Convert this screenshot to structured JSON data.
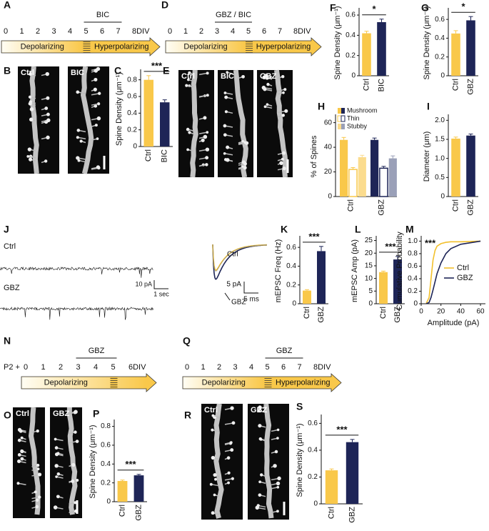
{
  "timelines": [
    {
      "panel": "A",
      "ticks": [
        "0",
        "1",
        "2",
        "3",
        "4",
        "5",
        "6",
        "7",
        "8DIV"
      ],
      "drug": "BIC",
      "phases": [
        "Depolarizing",
        "Hyperpolarizing"
      ]
    },
    {
      "panel": "D",
      "ticks": [
        "0",
        "1",
        "2",
        "3",
        "4",
        "5",
        "6",
        "7",
        "8DIV"
      ],
      "drug": "GBZ / BIC",
      "phases": [
        "Depolarizing",
        "Hyperpolarizing"
      ]
    },
    {
      "panel": "N",
      "prefix": "P2 +",
      "ticks": [
        "0",
        "1",
        "2",
        "3",
        "4",
        "5",
        "6DIV"
      ],
      "drug": "GBZ",
      "phases": [
        "Depolarizing"
      ]
    },
    {
      "panel": "Q",
      "ticks": [
        "0",
        "1",
        "2",
        "3",
        "4",
        "5",
        "6",
        "7",
        "8DIV"
      ],
      "drug": "GBZ",
      "phases": [
        "Depolarizing",
        "Hyperpolarizing"
      ]
    }
  ],
  "images": [
    {
      "panel": "B",
      "labels": [
        "Ctrl",
        "BIC"
      ]
    },
    {
      "panel": "E",
      "labels": [
        "Ctrl",
        "BIC",
        "GBZ"
      ]
    },
    {
      "panel": "O",
      "labels": [
        "Ctrl",
        "GBZ"
      ]
    },
    {
      "panel": "R",
      "labels": [
        "Ctrl",
        "GBZ"
      ]
    }
  ],
  "traces": {
    "panel": "J",
    "rows": [
      "Ctrl",
      "GBZ"
    ],
    "scale_raw": [
      "10 pA",
      "1 sec"
    ],
    "inset_labels": [
      "Ctrl",
      "GBZ"
    ],
    "scale_inset": [
      "5 pA",
      "5 ms"
    ]
  },
  "chart_data": [
    {
      "type": "bar",
      "panel": "C",
      "ylabel": "Spine Density (μm⁻¹)",
      "categories": [
        "Ctrl",
        "BIC"
      ],
      "values": [
        0.8,
        0.53
      ],
      "errors": [
        0.05,
        0.03
      ],
      "colors": [
        "#f9c84a",
        "#1e2557"
      ],
      "ylim": [
        0,
        0.9
      ],
      "yticks": [
        0,
        0.2,
        0.4,
        0.6,
        0.8
      ],
      "significance": "***"
    },
    {
      "type": "bar",
      "panel": "F",
      "ylabel": "Spine Density (μm⁻¹)",
      "categories": [
        "Ctrl",
        "BIC"
      ],
      "values": [
        0.42,
        0.53
      ],
      "errors": [
        0.02,
        0.03
      ],
      "colors": [
        "#f9c84a",
        "#1e2557"
      ],
      "ylim": [
        0,
        0.65
      ],
      "yticks": [
        0,
        0.2,
        0.4,
        0.6
      ],
      "significance": "*"
    },
    {
      "type": "bar",
      "panel": "G",
      "ylabel": "Spine Density (μm⁻¹)",
      "categories": [
        "Ctrl",
        "GBZ"
      ],
      "values": [
        0.45,
        0.59
      ],
      "errors": [
        0.03,
        0.04
      ],
      "colors": [
        "#f9c84a",
        "#1e2557"
      ],
      "ylim": [
        0,
        0.7
      ],
      "yticks": [
        0,
        0.2,
        0.4,
        0.6
      ],
      "significance": "*"
    },
    {
      "type": "grouped_bar",
      "panel": "H",
      "ylabel": "% of Spines",
      "categories": [
        "Ctrl",
        "GBZ"
      ],
      "ylim": [
        0,
        65
      ],
      "yticks": [
        0,
        20,
        40,
        60
      ],
      "series": [
        {
          "name": "Mushroom",
          "values": [
            46,
            46
          ],
          "errors": [
            2,
            1.5
          ],
          "colors": [
            "#f9c84a",
            "#1e2557"
          ],
          "hollow": false
        },
        {
          "name": "Thin",
          "values": [
            22,
            23
          ],
          "errors": [
            1.5,
            1.5
          ],
          "colors": [
            "#f9c84a",
            "#1e2557"
          ],
          "hollow": true
        },
        {
          "name": "Stubby",
          "values": [
            32,
            31
          ],
          "errors": [
            1.5,
            2
          ],
          "colors": [
            "#fbdc8e",
            "#9aa0b8"
          ],
          "hollow": false
        }
      ]
    },
    {
      "type": "bar",
      "panel": "I",
      "ylabel": "Diameter (μm)",
      "categories": [
        "Ctrl",
        "GBZ"
      ],
      "values": [
        1.52,
        1.6
      ],
      "errors": [
        0.04,
        0.04
      ],
      "colors": [
        "#f9c84a",
        "#1e2557"
      ],
      "ylim": [
        0,
        2.1
      ],
      "yticks": [
        0,
        0.5,
        {
          "value": 1,
          "label": "1.0"
        },
        1.5,
        {
          "value": 2,
          "label": "2.0"
        }
      ]
    },
    {
      "type": "bar",
      "panel": "K",
      "ylabel": "mEPSC Freq (Hz)",
      "categories": [
        "Ctrl",
        "GBZ"
      ],
      "values": [
        0.14,
        0.56
      ],
      "errors": [
        0.01,
        0.05
      ],
      "colors": [
        "#f9c84a",
        "#1e2557"
      ],
      "ylim": [
        0,
        0.7
      ],
      "yticks": [
        0,
        0.2,
        0.4,
        0.6
      ],
      "significance": "***"
    },
    {
      "type": "bar",
      "panel": "L",
      "ylabel": "mEPSC Amp (pA)",
      "categories": [
        "Ctrl",
        "GBZ"
      ],
      "values": [
        12.5,
        17.5
      ],
      "errors": [
        0.4,
        1.2
      ],
      "colors": [
        "#f9c84a",
        "#1e2557"
      ],
      "ylim": [
        0,
        26
      ],
      "yticks": [
        0,
        5,
        10,
        15,
        20,
        25
      ],
      "significance": "***"
    },
    {
      "type": "line",
      "panel": "M",
      "xlabel": "Amplitude (pA)",
      "ylabel": "Cumulative Probability",
      "x": [
        5,
        8,
        10,
        12,
        14,
        16,
        20,
        25,
        30,
        40,
        60
      ],
      "series": [
        {
          "name": "Ctrl",
          "color": "#f2c02c",
          "values": [
            0,
            0.1,
            0.4,
            0.7,
            0.85,
            0.92,
            0.96,
            0.98,
            0.99,
            0.99,
            1.0
          ]
        },
        {
          "name": "GBZ",
          "color": "#1e2557",
          "values": [
            0,
            0.02,
            0.1,
            0.22,
            0.35,
            0.48,
            0.65,
            0.8,
            0.88,
            0.95,
            1.0
          ]
        }
      ],
      "xlim": [
        0,
        65
      ],
      "ylim": [
        0,
        1.05
      ],
      "xticks": [
        0,
        20,
        40,
        60
      ],
      "yticks": [
        0,
        0.2,
        0.4,
        0.6,
        0.8,
        {
          "value": 1,
          "label": "1.0"
        }
      ],
      "significance": "***"
    },
    {
      "type": "bar",
      "panel": "P",
      "ylabel": "Spine Density (μm⁻¹)",
      "categories": [
        "Ctrl",
        "GBZ"
      ],
      "values": [
        0.22,
        0.28
      ],
      "errors": [
        0.01,
        0.01
      ],
      "colors": [
        "#f9c84a",
        "#1e2557"
      ],
      "ylim": [
        0,
        0.85
      ],
      "yticks": [
        0,
        0.2,
        0.4,
        0.6,
        0.8
      ],
      "significance": "***"
    },
    {
      "type": "bar",
      "panel": "S",
      "ylabel": "Spine Density (μm⁻¹)",
      "categories": [
        "Ctrl",
        "GBZ"
      ],
      "values": [
        0.25,
        0.46
      ],
      "errors": [
        0.01,
        0.02
      ],
      "colors": [
        "#f9c84a",
        "#1e2557"
      ],
      "ylim": [
        0,
        0.65
      ],
      "yticks": [
        0,
        0.2,
        0.4,
        0.6
      ],
      "significance": "***"
    }
  ]
}
